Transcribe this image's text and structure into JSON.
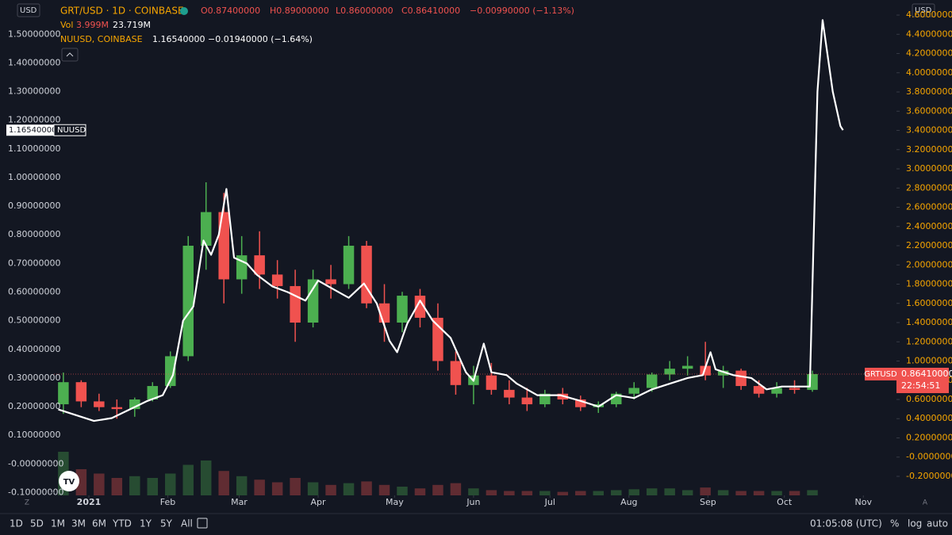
{
  "chart_data": {
    "type": "candlestick",
    "symbol": "GRT/USD · 1D · COINBASE",
    "ohlc": [
      "O0.87400000",
      "H0.89000000",
      "L0.86000000",
      "C0.86410000",
      "−0.00990000 (−1.13%)"
    ],
    "volume_label": "Vol",
    "volume_values": [
      "3.999M",
      "23.719M"
    ],
    "compare_label": "NUUSD, COINBASE",
    "compare_values": [
      "1.16540000",
      "−0.01940000 (−1.64%)"
    ],
    "currency": "USD",
    "countdown": "22:54:51",
    "xlim": [
      -13.7,
      317
    ],
    "xticks": [
      {
        "value": 0,
        "label": "2021"
      },
      {
        "value": 31,
        "label": "Feb"
      },
      {
        "value": 59,
        "label": "Mar"
      },
      {
        "value": 90,
        "label": "Apr"
      },
      {
        "value": 120,
        "label": "May"
      },
      {
        "value": 151,
        "label": "Jun"
      },
      {
        "value": 181,
        "label": "Jul"
      },
      {
        "value": 212,
        "label": "Aug"
      },
      {
        "value": 243,
        "label": "Sep"
      },
      {
        "value": 273,
        "label": "Oct"
      },
      {
        "value": 304,
        "label": "Nov"
      }
    ],
    "ylim": [
      -0.11,
      1.62
    ],
    "yticks": [
      {
        "value": -0.1,
        "label": "-0.10000000"
      },
      {
        "value": 0,
        "label": "-0.00000000"
      },
      {
        "value": 0.1,
        "label": "0.10000000"
      },
      {
        "value": 0.2,
        "label": "0.20000000"
      },
      {
        "value": 0.3,
        "label": "0.30000000"
      },
      {
        "value": 0.4,
        "label": "0.40000000"
      },
      {
        "value": 0.5,
        "label": "0.50000000"
      },
      {
        "value": 0.6,
        "label": "0.60000000"
      },
      {
        "value": 0.7,
        "label": "0.70000000"
      },
      {
        "value": 0.8,
        "label": "0.80000000"
      },
      {
        "value": 0.9,
        "label": "0.90000000"
      },
      {
        "value": 1.0,
        "label": "1.00000000"
      },
      {
        "value": 1.1,
        "label": "1.10000000"
      },
      {
        "value": 1.2,
        "label": "1.20000000"
      },
      {
        "value": 1.3,
        "label": "1.30000000"
      },
      {
        "value": 1.4,
        "label": "1.40000000"
      },
      {
        "value": 1.5,
        "label": "1.50000000"
      }
    ],
    "y2lim": [
      -0.398,
      4.757
    ],
    "y2ticks": [
      {
        "value": -0.2,
        "label": "-0.20000000"
      },
      {
        "value": 0,
        "label": "-0.00000000"
      },
      {
        "value": 0.2,
        "label": "0.20000000"
      },
      {
        "value": 0.4,
        "label": "0.40000000"
      },
      {
        "value": 0.6,
        "label": "0.60000000"
      },
      {
        "value": 0.8,
        "label": "0.80000000"
      },
      {
        "value": 1.0,
        "label": "1.00000000"
      },
      {
        "value": 1.2,
        "label": "1.20000000"
      },
      {
        "value": 1.4,
        "label": "1.40000000"
      },
      {
        "value": 1.6,
        "label": "1.60000000"
      },
      {
        "value": 1.8,
        "label": "1.80000000"
      },
      {
        "value": 2.0,
        "label": "2.00000000"
      },
      {
        "value": 2.2,
        "label": "2.20000000"
      },
      {
        "value": 2.4,
        "label": "2.40000000"
      },
      {
        "value": 2.6,
        "label": "2.60000000"
      },
      {
        "value": 2.8,
        "label": "2.80000000"
      },
      {
        "value": 3.0,
        "label": "3.00000000"
      },
      {
        "value": 3.2,
        "label": "3.20000000"
      },
      {
        "value": 3.4,
        "label": "3.40000000"
      },
      {
        "value": 3.6,
        "label": "3.60000000"
      },
      {
        "value": 3.8,
        "label": "3.80000000"
      },
      {
        "value": 4.0,
        "label": "4.00000000"
      },
      {
        "value": 4.2,
        "label": "4.20000000"
      },
      {
        "value": 4.4,
        "label": "4.40000000"
      },
      {
        "value": 4.6,
        "label": "4.60000000"
      }
    ],
    "grid": false,
    "log_scale": false,
    "series": [
      {
        "name": "GRTUSD",
        "type": "candlestick",
        "axis": "y2",
        "up_color": "#4caf50",
        "down_color": "#f0524f",
        "last": {
          "value": 0.8641,
          "label": "0.86410000"
        },
        "x": [
          -10,
          -3,
          4,
          11,
          18,
          25,
          32,
          39,
          46,
          53,
          60,
          67,
          74,
          81,
          88,
          95,
          102,
          109,
          116,
          123,
          130,
          137,
          144,
          151,
          158,
          165,
          172,
          179,
          186,
          193,
          200,
          207,
          214,
          221,
          228,
          235,
          242,
          249,
          256,
          263,
          270,
          277,
          284
        ],
        "open": [
          0.55,
          0.78,
          0.58,
          0.52,
          0.5,
          0.6,
          0.74,
          1.05,
          2.2,
          2.55,
          1.85,
          2.1,
          1.9,
          1.78,
          1.4,
          1.85,
          1.8,
          2.2,
          1.6,
          1.4,
          1.68,
          1.45,
          1.0,
          0.75,
          0.85,
          0.7,
          0.62,
          0.55,
          0.66,
          0.6,
          0.52,
          0.55,
          0.66,
          0.72,
          0.86,
          0.92,
          0.95,
          0.85,
          0.9,
          0.74,
          0.66,
          0.72,
          0.7
        ],
        "high": [
          0.88,
          0.8,
          0.66,
          0.6,
          0.62,
          0.78,
          1.1,
          2.3,
          2.86,
          2.75,
          2.3,
          2.35,
          2.05,
          1.95,
          1.95,
          2.0,
          2.3,
          2.25,
          1.8,
          1.72,
          1.75,
          1.6,
          1.1,
          0.95,
          0.98,
          0.8,
          0.72,
          0.7,
          0.72,
          0.64,
          0.58,
          0.68,
          0.78,
          0.88,
          1.0,
          1.05,
          1.2,
          0.95,
          0.92,
          0.8,
          0.78,
          0.8,
          0.9
        ],
        "low": [
          0.45,
          0.52,
          0.48,
          0.4,
          0.42,
          0.58,
          0.72,
          1.0,
          1.95,
          1.6,
          1.7,
          1.75,
          1.65,
          1.2,
          1.35,
          1.65,
          1.75,
          1.55,
          1.2,
          1.3,
          1.35,
          0.9,
          0.65,
          0.55,
          0.65,
          0.55,
          0.48,
          0.52,
          0.55,
          0.48,
          0.46,
          0.52,
          0.6,
          0.68,
          0.8,
          0.85,
          0.8,
          0.72,
          0.7,
          0.62,
          0.62,
          0.66,
          0.68
        ],
        "close": [
          0.78,
          0.58,
          0.52,
          0.5,
          0.6,
          0.74,
          1.05,
          2.2,
          2.55,
          1.85,
          2.1,
          1.9,
          1.78,
          1.4,
          1.85,
          1.8,
          2.2,
          1.6,
          1.4,
          1.68,
          1.45,
          1.0,
          0.75,
          0.85,
          0.7,
          0.62,
          0.55,
          0.66,
          0.6,
          0.52,
          0.55,
          0.66,
          0.72,
          0.86,
          0.92,
          0.95,
          0.85,
          0.9,
          0.74,
          0.66,
          0.72,
          0.7,
          0.8641
        ],
        "volume": [
          50,
          30,
          25,
          20,
          22,
          20,
          25,
          35,
          40,
          28,
          22,
          18,
          15,
          20,
          15,
          12,
          14,
          16,
          12,
          10,
          8,
          12,
          14,
          8,
          6,
          5,
          5,
          5,
          4,
          5,
          5,
          6,
          7,
          8,
          8,
          6,
          9,
          6,
          5,
          5,
          5,
          5,
          6
        ]
      },
      {
        "name": "NUUSD",
        "type": "line",
        "axis": "y",
        "color": "#ffffff",
        "last": {
          "value": 1.1654,
          "label": "1.16540000"
        },
        "x": [
          -12,
          -5,
          2,
          9,
          16,
          23,
          29,
          33,
          37,
          41,
          45,
          48,
          51,
          54,
          57,
          62,
          66,
          72,
          78,
          85,
          90,
          96,
          102,
          108,
          113,
          118,
          121,
          125,
          130,
          135,
          142,
          148,
          151,
          155,
          158,
          164,
          168,
          176,
          185,
          193,
          200,
          207,
          214,
          221,
          228,
          235,
          241,
          244,
          246,
          253,
          260,
          266,
          272,
          278,
          283,
          286,
          288,
          292,
          295,
          296
        ],
        "values": [
          0.19,
          0.17,
          0.15,
          0.16,
          0.19,
          0.22,
          0.24,
          0.31,
          0.5,
          0.55,
          0.78,
          0.73,
          0.8,
          0.96,
          0.72,
          0.7,
          0.66,
          0.62,
          0.6,
          0.57,
          0.64,
          0.61,
          0.58,
          0.63,
          0.56,
          0.43,
          0.39,
          0.49,
          0.57,
          0.5,
          0.44,
          0.32,
          0.29,
          0.42,
          0.32,
          0.31,
          0.28,
          0.24,
          0.24,
          0.22,
          0.2,
          0.24,
          0.23,
          0.26,
          0.28,
          0.3,
          0.31,
          0.39,
          0.33,
          0.31,
          0.3,
          0.26,
          0.27,
          0.27,
          0.27,
          1.3,
          1.55,
          1.3,
          1.18,
          1.1654
        ]
      }
    ]
  },
  "toolbar": {
    "ranges": [
      "1D",
      "5D",
      "1M",
      "3M",
      "6M",
      "YTD",
      "1Y",
      "5Y",
      "All"
    ],
    "clock": "01:05:08 (UTC)",
    "options": [
      "%",
      "log",
      "auto"
    ],
    "corner_left": "Z",
    "corner_right": "A"
  }
}
